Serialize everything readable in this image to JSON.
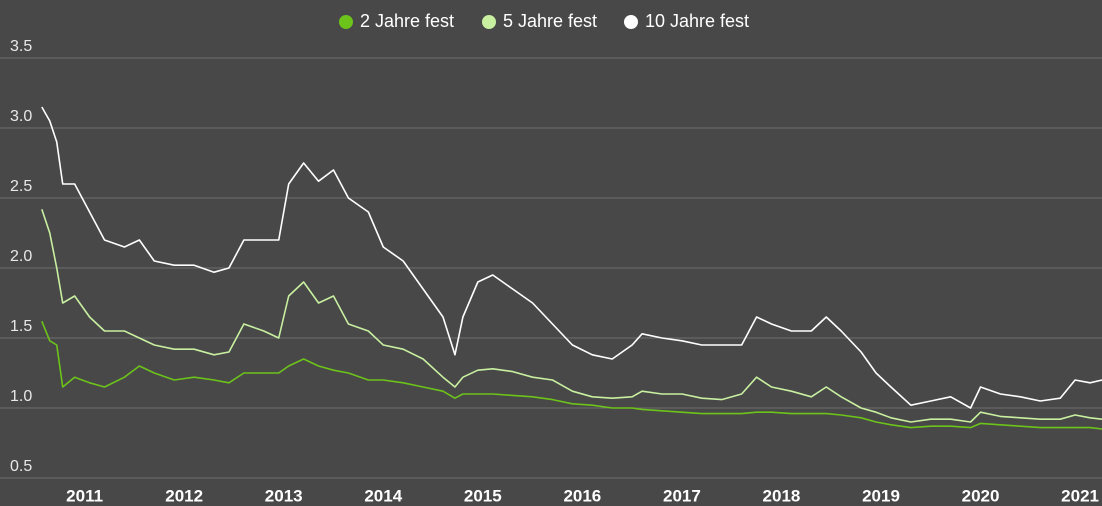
{
  "chart_data": {
    "type": "line",
    "x": [
      2010.57,
      2010.65,
      2010.72,
      2010.78,
      2010.9,
      2011.05,
      2011.2,
      2011.4,
      2011.55,
      2011.7,
      2011.9,
      2012.1,
      2012.3,
      2012.45,
      2012.6,
      2012.8,
      2012.95,
      2013.05,
      2013.2,
      2013.35,
      2013.5,
      2013.65,
      2013.85,
      2014.0,
      2014.2,
      2014.4,
      2014.6,
      2014.72,
      2014.8,
      2014.95,
      2015.1,
      2015.3,
      2015.5,
      2015.7,
      2015.9,
      2016.1,
      2016.3,
      2016.5,
      2016.6,
      2016.8,
      2017.0,
      2017.2,
      2017.4,
      2017.6,
      2017.75,
      2017.9,
      2018.1,
      2018.3,
      2018.45,
      2018.6,
      2018.8,
      2018.95,
      2019.1,
      2019.3,
      2019.5,
      2019.7,
      2019.9,
      2020.0,
      2020.2,
      2020.4,
      2020.6,
      2020.8,
      2020.95,
      2021.1,
      2021.22
    ],
    "series": [
      {
        "name": "2 Jahre fest",
        "color": "#6cc31a",
        "values": [
          1.62,
          1.48,
          1.45,
          1.15,
          1.22,
          1.18,
          1.15,
          1.22,
          1.3,
          1.25,
          1.2,
          1.22,
          1.2,
          1.18,
          1.25,
          1.25,
          1.25,
          1.3,
          1.35,
          1.3,
          1.27,
          1.25,
          1.2,
          1.2,
          1.18,
          1.15,
          1.12,
          1.07,
          1.1,
          1.1,
          1.1,
          1.09,
          1.08,
          1.06,
          1.03,
          1.02,
          1.0,
          1.0,
          0.99,
          0.98,
          0.97,
          0.96,
          0.96,
          0.96,
          0.97,
          0.97,
          0.96,
          0.96,
          0.96,
          0.95,
          0.93,
          0.9,
          0.88,
          0.86,
          0.87,
          0.87,
          0.86,
          0.89,
          0.88,
          0.87,
          0.86,
          0.86,
          0.86,
          0.86,
          0.85
        ]
      },
      {
        "name": "5 Jahre fest",
        "color": "#c8f0a0",
        "values": [
          2.42,
          2.25,
          2.0,
          1.75,
          1.8,
          1.65,
          1.55,
          1.55,
          1.5,
          1.45,
          1.42,
          1.42,
          1.38,
          1.4,
          1.6,
          1.55,
          1.5,
          1.8,
          1.9,
          1.75,
          1.8,
          1.6,
          1.55,
          1.45,
          1.42,
          1.35,
          1.22,
          1.15,
          1.22,
          1.27,
          1.28,
          1.26,
          1.22,
          1.2,
          1.12,
          1.08,
          1.07,
          1.08,
          1.12,
          1.1,
          1.1,
          1.07,
          1.06,
          1.1,
          1.22,
          1.15,
          1.12,
          1.08,
          1.15,
          1.08,
          1.0,
          0.97,
          0.93,
          0.9,
          0.92,
          0.92,
          0.9,
          0.97,
          0.94,
          0.93,
          0.92,
          0.92,
          0.95,
          0.93,
          0.92
        ]
      },
      {
        "name": "10 Jahre fest",
        "color": "#ffffff",
        "values": [
          3.15,
          3.05,
          2.9,
          2.6,
          2.6,
          2.4,
          2.2,
          2.15,
          2.2,
          2.05,
          2.02,
          2.02,
          1.97,
          2.0,
          2.2,
          2.2,
          2.2,
          2.6,
          2.75,
          2.62,
          2.7,
          2.5,
          2.4,
          2.15,
          2.05,
          1.85,
          1.65,
          1.38,
          1.65,
          1.9,
          1.95,
          1.85,
          1.75,
          1.6,
          1.45,
          1.38,
          1.35,
          1.45,
          1.53,
          1.5,
          1.48,
          1.45,
          1.45,
          1.45,
          1.65,
          1.6,
          1.55,
          1.55,
          1.65,
          1.55,
          1.4,
          1.25,
          1.15,
          1.02,
          1.05,
          1.08,
          1.0,
          1.15,
          1.1,
          1.08,
          1.05,
          1.07,
          1.2,
          1.18,
          1.2
        ]
      }
    ],
    "xlim": [
      2010.15,
      2021.22
    ],
    "xticks": [
      2011,
      2012,
      2013,
      2014,
      2015,
      2016,
      2017,
      2018,
      2019,
      2020,
      2021
    ],
    "ylim": [
      0.5,
      3.5
    ],
    "yticks": [
      0.5,
      {
        "value": 1,
        "label": "1.0"
      },
      1.5,
      {
        "value": 2,
        "label": "2.0"
      },
      2.5,
      {
        "value": 3,
        "label": "3.0"
      },
      3.5
    ],
    "grid": true,
    "legend": "top"
  }
}
